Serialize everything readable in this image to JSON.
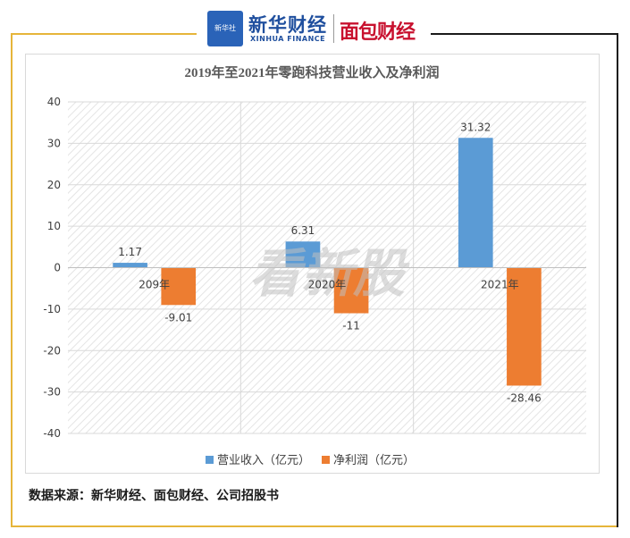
{
  "header": {
    "xinhua_badge": "新华社",
    "xinhua_cn": "新华财经",
    "xinhua_en": "XINHUA FINANCE",
    "mianbao": "面包财经"
  },
  "watermark": "看新股",
  "source": "数据来源：新华财经、面包财经、公司招股书",
  "colors": {
    "revenue": "#5b9bd5",
    "profit": "#ed7d31",
    "frame_gold": "#e6b53a"
  },
  "chart_data": {
    "type": "bar",
    "title": "2019年至2021年零跑科技营业收入及净利润",
    "categories": [
      "209年",
      "2020年",
      "2021年"
    ],
    "series": [
      {
        "name": "营业收入（亿元）",
        "values": [
          1.17,
          6.31,
          31.32
        ],
        "labels": [
          "1.17",
          "6.31",
          "31.32"
        ]
      },
      {
        "name": "净利润（亿元）",
        "values": [
          -9.01,
          -11,
          -28.46
        ],
        "labels": [
          "-9.01",
          "-11",
          "-28.46"
        ]
      }
    ],
    "ylim": [
      -40,
      40
    ],
    "yticks": [
      40,
      30,
      20,
      10,
      0,
      -10,
      -20,
      -30,
      -40
    ],
    "legend": "bottom",
    "grid": true
  }
}
